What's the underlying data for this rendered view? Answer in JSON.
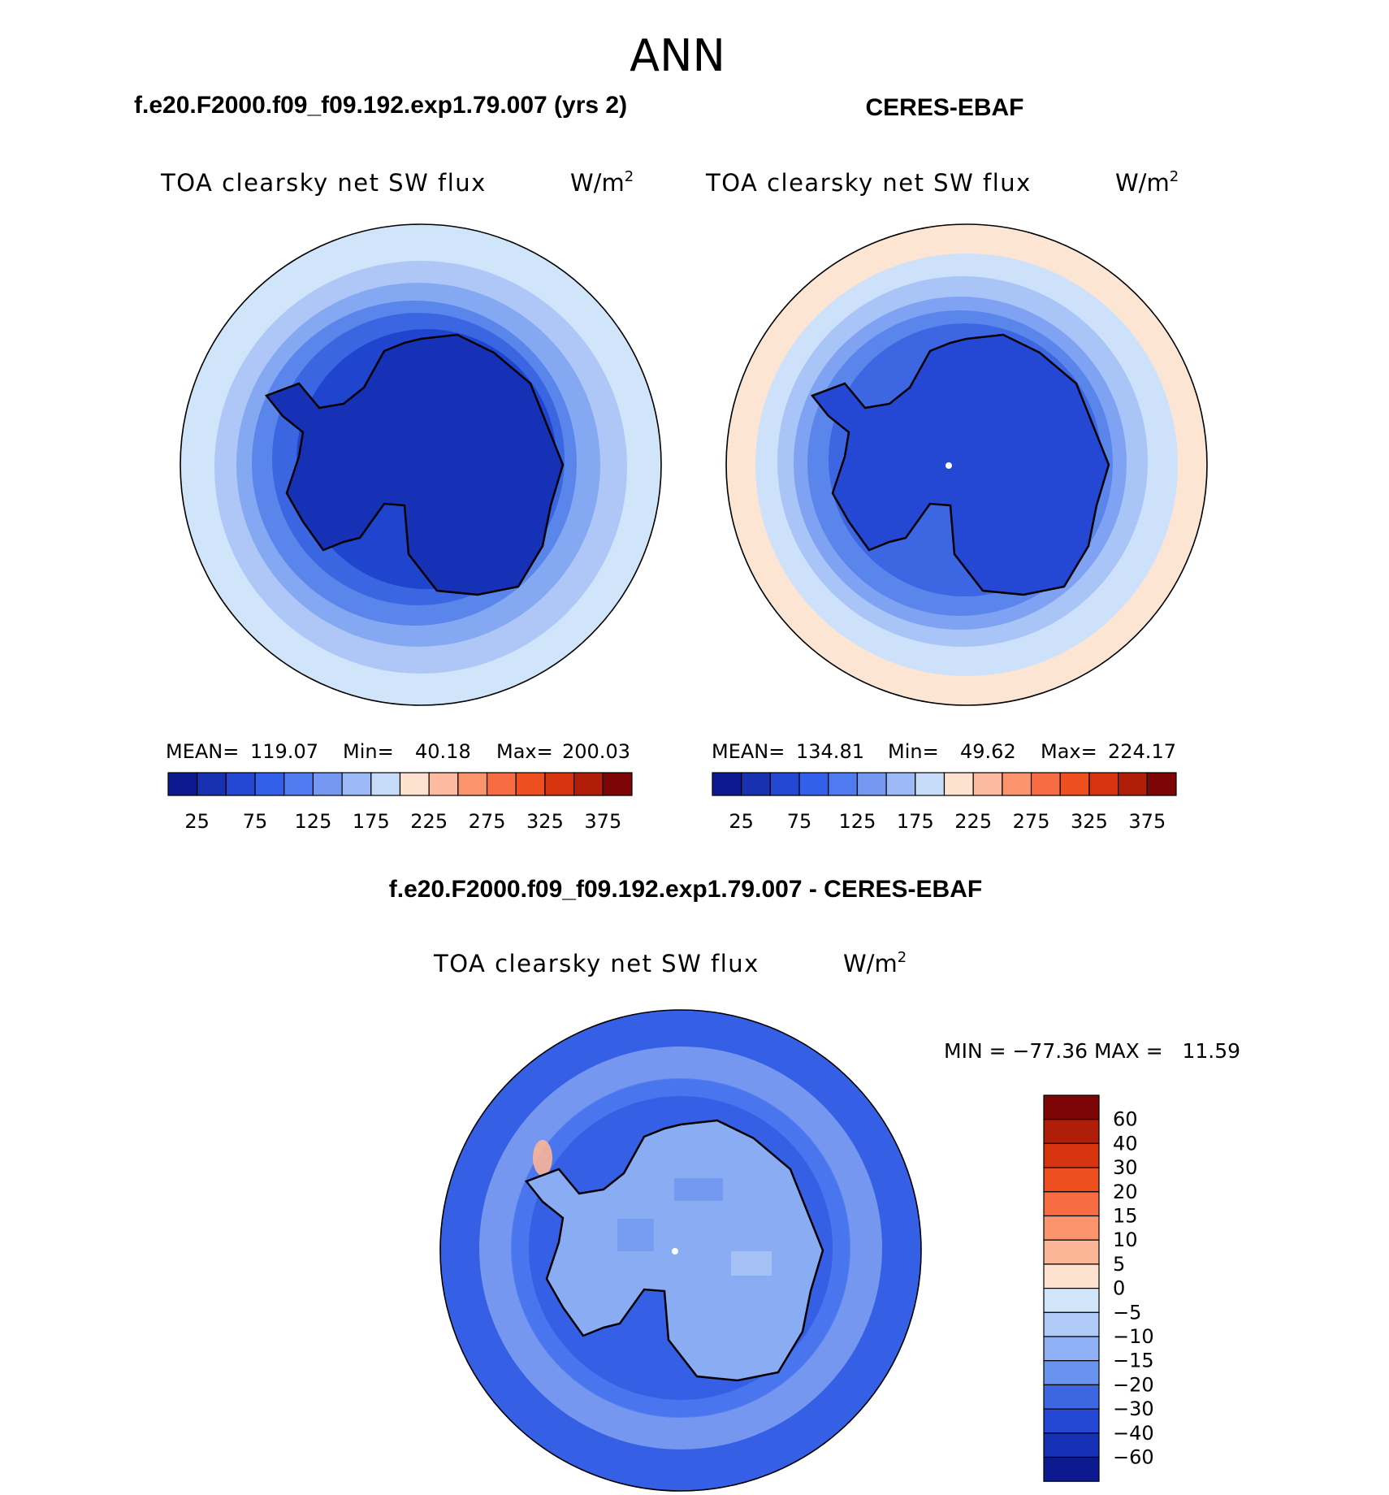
{
  "title": "ANN",
  "panels": [
    {
      "id": "model",
      "header": "f.e20.F2000.f09_f09.192.exp1.79.007 (yrs 2)",
      "variable": "TOA clearsky net SW flux",
      "units_base": "W/m",
      "units_exp": "2",
      "stats": {
        "mean_label": "MEAN=",
        "mean": "119.07",
        "min_label": "Min=",
        "min": "40.18",
        "max_label": "Max=",
        "max": "200.03"
      },
      "bands": [
        "#0d1a8f",
        "#1831b0",
        "#2448d4",
        "#3360ea",
        "#4f7af0",
        "#7599f3",
        "#9cb8f5",
        "#c6dbf8",
        "#fde2cf",
        "#fcbba0",
        "#fb936d",
        "#f76c43",
        "#ed4f1f",
        "#d5340f",
        "#b01d08",
        "#7d0505"
      ],
      "fields": [
        "#d0e4fa",
        "#aec7f7",
        "#85a8f2",
        "#5a86ec",
        "#3a66e2",
        "#1f45cf",
        "#1631b6"
      ]
    },
    {
      "id": "obs",
      "header": "CERES-EBAF",
      "variable": "TOA clearsky net SW flux",
      "units_base": "W/m",
      "units_exp": "2",
      "stats": {
        "mean_label": "MEAN=",
        "mean": "134.81",
        "min_label": "Min=",
        "min": "49.62",
        "max_label": "Max=",
        "max": "224.17"
      },
      "bands": [
        "#0d1a8f",
        "#1831b0",
        "#2448d4",
        "#3360ea",
        "#4f7af0",
        "#7599f3",
        "#9cb8f5",
        "#c6dbf8",
        "#fde2cf",
        "#fcbba0",
        "#fb936d",
        "#f76c43",
        "#ed4f1f",
        "#d5340f",
        "#b01d08",
        "#7d0505"
      ],
      "fields": [
        "#fde5d3",
        "#cde1fa",
        "#a9c4f6",
        "#7fa3f2",
        "#5a86ec",
        "#3d66e2",
        "#2448d4"
      ]
    }
  ],
  "colorbar_ticks": [
    "25",
    "75",
    "125",
    "175",
    "225",
    "275",
    "325",
    "375"
  ],
  "diff": {
    "header": "f.e20.F2000.f09_f09.192.exp1.79.007 - CERES-EBAF",
    "variable": "TOA clearsky net SW flux",
    "units_base": "W/m",
    "units_exp": "2",
    "minmax_label": "MIN = −77.36 MAX =   11.59",
    "colorbar_labels": [
      "60",
      "40",
      "30",
      "20",
      "15",
      "10",
      "5",
      "0",
      "−5",
      "−10",
      "−15",
      "−20",
      "−30",
      "−40",
      "−60"
    ],
    "colorbar_colors": [
      "#7d0505",
      "#b01d08",
      "#d5340f",
      "#ed4f1f",
      "#f76c43",
      "#fb936d",
      "#fcb597",
      "#fde2cf",
      "#d0e4fa",
      "#b0cbf7",
      "#8fb0f4",
      "#6a92ef",
      "#3d66e2",
      "#2448d4",
      "#1631b6",
      "#0d1a8f"
    ],
    "ocean_color": "#3560e6",
    "ring_color": "#a9c4f6",
    "continent_color": "#8aacf2"
  }
}
